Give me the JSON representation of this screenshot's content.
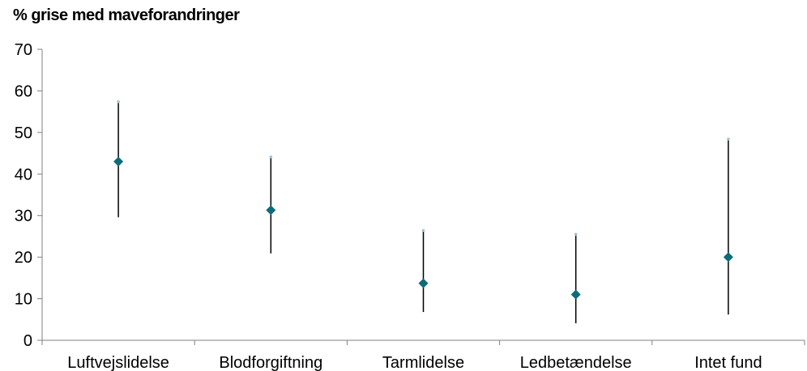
{
  "chart_data": {
    "type": "scatter",
    "title": "% grise med maveforandringer",
    "xlabel": "",
    "ylabel": "",
    "ylim": [
      0,
      70
    ],
    "yticks": [
      0,
      10,
      20,
      30,
      40,
      50,
      60,
      70
    ],
    "categories": [
      "Luftvejslidelse",
      "Blodforgiftning",
      "Tarmlidelse",
      "Ledbetændelse",
      "Intet fund"
    ],
    "series": [
      {
        "values": [
          43,
          31.3,
          13.7,
          11,
          20
        ],
        "lower": [
          29.6,
          20.9,
          6.8,
          4.1,
          6.2
        ],
        "upper": [
          57.4,
          44.1,
          26.4,
          25.5,
          48.4
        ]
      }
    ],
    "grid": false,
    "legend": "none",
    "colors": {
      "marker": "#0e6b78",
      "errorbar": "#000000",
      "axis": "#808080",
      "capdot": "#9ec4d6"
    }
  }
}
